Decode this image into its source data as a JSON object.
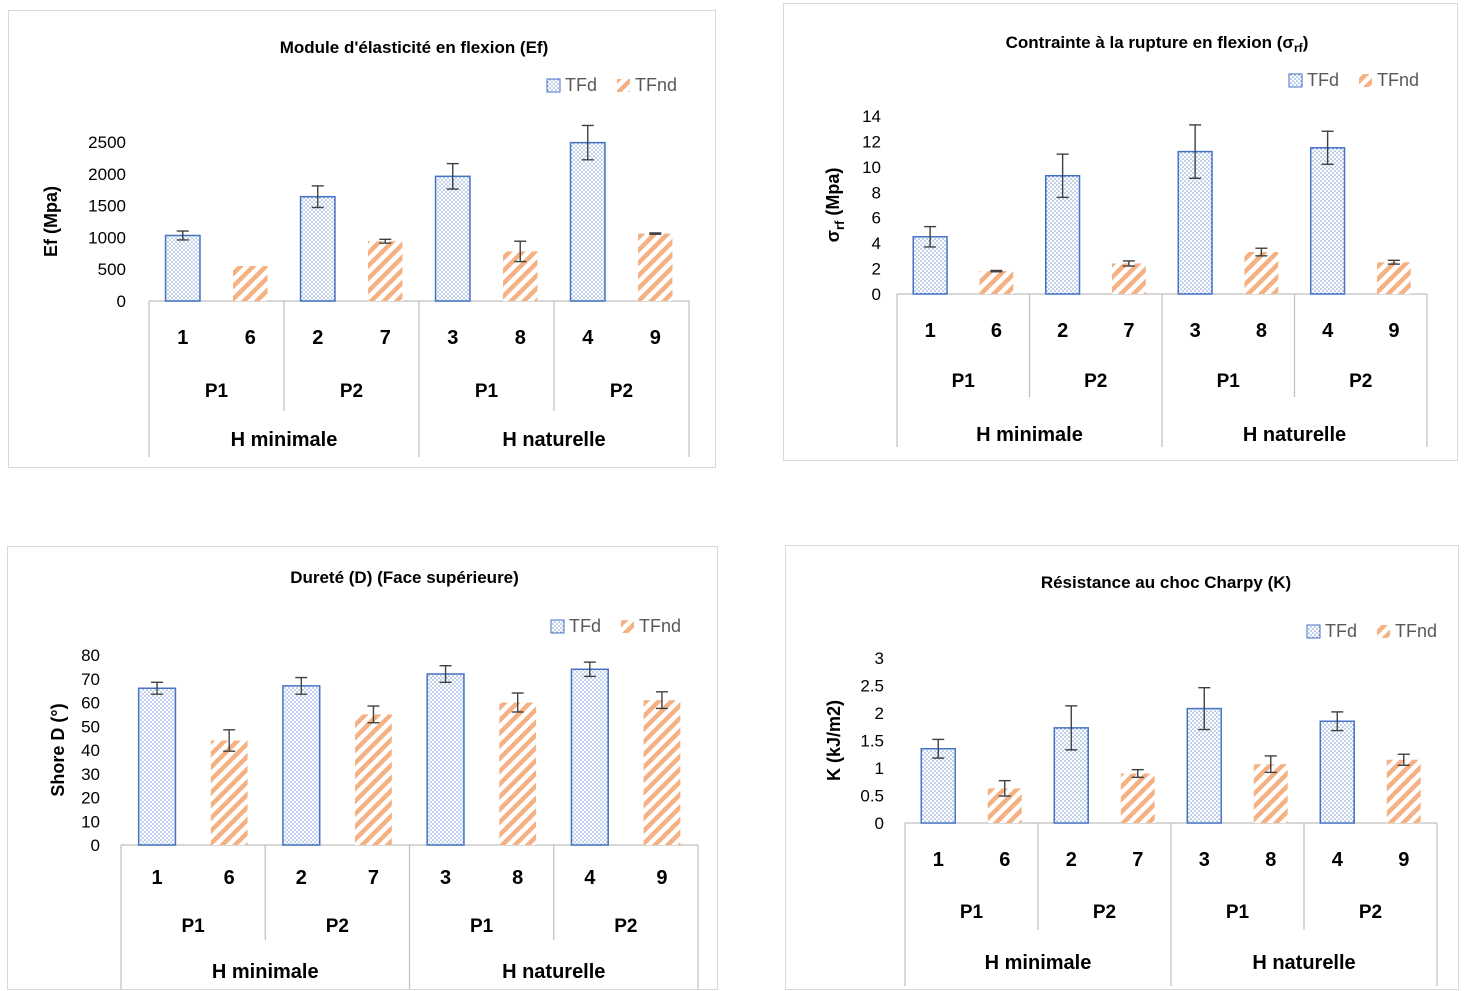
{
  "colors": {
    "tfd_border": "#4472c4",
    "tfd_dots": "#6f93d0",
    "tfnd_stripe": "#f4b183",
    "axis": "#bfbfbf",
    "text": "#000000",
    "legend_text": "#595959",
    "error_bar": "#404040"
  },
  "chart_data": [
    {
      "type": "bar",
      "title": "Module d'élasticité en flexion (Ef)",
      "ylabel": "Ef (Mpa)",
      "ylim": [
        0,
        2500
      ],
      "yticks": [
        0,
        500,
        1000,
        1500,
        2000,
        2500
      ],
      "categories": [
        "1",
        "6",
        "2",
        "7",
        "3",
        "8",
        "4",
        "9"
      ],
      "series_of_bar": [
        "TFd",
        "TFnd",
        "TFd",
        "TFnd",
        "TFd",
        "TFnd",
        "TFd",
        "TFnd"
      ],
      "values": [
        1030,
        550,
        1640,
        940,
        1960,
        780,
        2490,
        1060
      ],
      "errors": [
        70,
        0,
        170,
        30,
        200,
        160,
        270,
        10
      ],
      "group_level1": [
        "P1",
        "P2",
        "P1",
        "P2"
      ],
      "group_level2": [
        "H minimale",
        "H naturelle"
      ],
      "legend": [
        "TFd",
        "TFnd"
      ],
      "legend_position": "top-right"
    },
    {
      "type": "bar",
      "title": "Contrainte à la rupture en flexion (σ",
      "title_sub": "rf",
      "title_end": ")",
      "ylabel": "σ",
      "ylabel_sub": "rf",
      "ylabel_end": " (Mpa)",
      "ylim": [
        0,
        14
      ],
      "yticks": [
        0,
        2,
        4,
        6,
        8,
        10,
        12,
        14
      ],
      "categories": [
        "1",
        "6",
        "2",
        "7",
        "3",
        "8",
        "4",
        "9"
      ],
      "series_of_bar": [
        "TFd",
        "TFnd",
        "TFd",
        "TFnd",
        "TFd",
        "TFnd",
        "TFd",
        "TFnd"
      ],
      "values": [
        4.5,
        1.8,
        9.3,
        2.4,
        11.2,
        3.3,
        11.5,
        2.5
      ],
      "errors": [
        0.8,
        0.05,
        1.7,
        0.2,
        2.1,
        0.3,
        1.3,
        0.15
      ],
      "group_level1": [
        "P1",
        "P2",
        "P1",
        "P2"
      ],
      "group_level2": [
        "H minimale",
        "H naturelle"
      ],
      "legend": [
        "TFd",
        "TFnd"
      ],
      "legend_position": "top-right"
    },
    {
      "type": "bar",
      "title": "Dureté (D) (Face supérieure)",
      "ylabel": "Shore D (°)",
      "ylim": [
        0,
        80
      ],
      "yticks": [
        0,
        10,
        20,
        30,
        40,
        50,
        60,
        70,
        80
      ],
      "categories": [
        "1",
        "6",
        "2",
        "7",
        "3",
        "8",
        "4",
        "9"
      ],
      "series_of_bar": [
        "TFd",
        "TFnd",
        "TFd",
        "TFnd",
        "TFd",
        "TFnd",
        "TFd",
        "TFnd"
      ],
      "values": [
        66,
        44,
        67,
        55,
        72,
        60,
        74,
        61
      ],
      "errors": [
        2.5,
        4.5,
        3.5,
        3.5,
        3.5,
        4,
        3,
        3.5
      ],
      "group_level1": [
        "P1",
        "P2",
        "P1",
        "P2"
      ],
      "group_level2": [
        "H minimale",
        "H naturelle"
      ],
      "legend": [
        "TFd",
        "TFnd"
      ],
      "legend_position": "top-right"
    },
    {
      "type": "bar",
      "title": "Résistance au choc Charpy (K)",
      "ylabel": "K (kJ/m2)",
      "ylim": [
        0,
        3
      ],
      "yticks": [
        "0",
        "0.5",
        "1",
        "1.5",
        "2",
        "2.5",
        "3"
      ],
      "categories": [
        "1",
        "6",
        "2",
        "7",
        "3",
        "8",
        "4",
        "9"
      ],
      "series_of_bar": [
        "TFd",
        "TFnd",
        "TFd",
        "TFnd",
        "TFd",
        "TFnd",
        "TFd",
        "TFnd"
      ],
      "values": [
        1.35,
        0.63,
        1.73,
        0.9,
        2.08,
        1.07,
        1.85,
        1.15
      ],
      "errors": [
        0.17,
        0.14,
        0.4,
        0.07,
        0.38,
        0.15,
        0.17,
        0.1
      ],
      "group_level1": [
        "P1",
        "P2",
        "P1",
        "P2"
      ],
      "group_level2": [
        "H minimale",
        "H naturelle"
      ],
      "legend": [
        "TFd",
        "TFnd"
      ],
      "legend_position": "top-right"
    }
  ]
}
